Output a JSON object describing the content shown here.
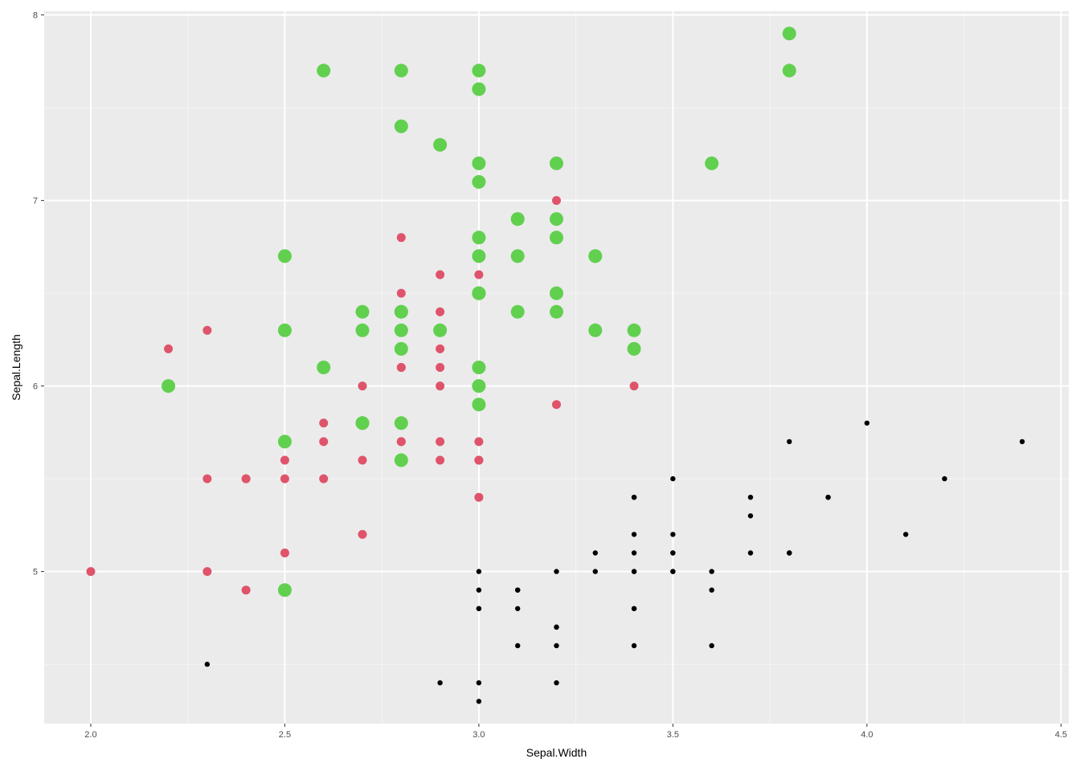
{
  "chart_data": {
    "type": "scatter",
    "title": "",
    "xlabel": "Sepal.Width",
    "ylabel": "Sepal.Length",
    "xlim": [
      1.88,
      4.52
    ],
    "ylim": [
      4.18,
      8.02
    ],
    "x_ticks": [
      "2.0",
      "2.5",
      "3.0",
      "3.5",
      "4.0",
      "4.5"
    ],
    "y_ticks": [
      "5",
      "6",
      "7",
      "8"
    ],
    "grid": true,
    "legend": "none",
    "series": [
      {
        "color": "#000000",
        "size": "small",
        "points": [
          [
            3.5,
            5.1
          ],
          [
            3.0,
            4.9
          ],
          [
            3.2,
            4.7
          ],
          [
            3.1,
            4.6
          ],
          [
            3.6,
            5.0
          ],
          [
            3.9,
            5.4
          ],
          [
            3.4,
            4.6
          ],
          [
            3.4,
            5.0
          ],
          [
            2.9,
            4.4
          ],
          [
            3.1,
            4.9
          ],
          [
            3.7,
            5.4
          ],
          [
            3.4,
            4.8
          ],
          [
            3.0,
            4.8
          ],
          [
            3.0,
            4.3
          ],
          [
            4.0,
            5.8
          ],
          [
            4.4,
            5.7
          ],
          [
            3.9,
            5.4
          ],
          [
            3.5,
            5.1
          ],
          [
            3.8,
            5.7
          ],
          [
            3.8,
            5.1
          ],
          [
            3.4,
            5.4
          ],
          [
            3.7,
            5.1
          ],
          [
            3.6,
            4.6
          ],
          [
            3.3,
            5.1
          ],
          [
            3.4,
            4.8
          ],
          [
            3.0,
            5.0
          ],
          [
            3.4,
            5.0
          ],
          [
            3.5,
            5.2
          ],
          [
            3.4,
            5.2
          ],
          [
            3.2,
            4.7
          ],
          [
            3.1,
            4.8
          ],
          [
            3.4,
            5.4
          ],
          [
            4.1,
            5.2
          ],
          [
            4.2,
            5.5
          ],
          [
            3.1,
            4.9
          ],
          [
            3.2,
            5.0
          ],
          [
            3.5,
            5.5
          ],
          [
            3.6,
            4.9
          ],
          [
            3.0,
            4.4
          ],
          [
            3.4,
            5.1
          ],
          [
            3.5,
            5.0
          ],
          [
            2.3,
            4.5
          ],
          [
            3.2,
            4.4
          ],
          [
            3.5,
            5.0
          ],
          [
            3.8,
            5.1
          ],
          [
            3.0,
            4.8
          ],
          [
            3.8,
            5.1
          ],
          [
            3.2,
            4.6
          ],
          [
            3.7,
            5.3
          ],
          [
            3.3,
            5.0
          ]
        ]
      },
      {
        "color": "#df536b",
        "size": "medium",
        "points": [
          [
            3.2,
            7.0
          ],
          [
            3.2,
            6.4
          ],
          [
            3.1,
            6.9
          ],
          [
            2.3,
            5.5
          ],
          [
            2.8,
            6.5
          ],
          [
            2.8,
            5.7
          ],
          [
            3.3,
            6.3
          ],
          [
            2.4,
            4.9
          ],
          [
            2.9,
            6.6
          ],
          [
            2.7,
            5.2
          ],
          [
            2.0,
            5.0
          ],
          [
            3.0,
            5.9
          ],
          [
            2.2,
            6.0
          ],
          [
            2.9,
            6.1
          ],
          [
            2.9,
            5.6
          ],
          [
            3.1,
            6.7
          ],
          [
            3.0,
            5.6
          ],
          [
            2.7,
            5.8
          ],
          [
            2.2,
            6.2
          ],
          [
            2.5,
            5.6
          ],
          [
            3.2,
            5.9
          ],
          [
            2.8,
            6.1
          ],
          [
            2.5,
            6.3
          ],
          [
            2.8,
            6.1
          ],
          [
            2.9,
            6.4
          ],
          [
            3.0,
            6.6
          ],
          [
            2.8,
            6.8
          ],
          [
            3.0,
            6.7
          ],
          [
            2.9,
            6.0
          ],
          [
            2.6,
            5.7
          ],
          [
            2.4,
            5.5
          ],
          [
            2.4,
            5.5
          ],
          [
            2.7,
            5.8
          ],
          [
            2.7,
            6.0
          ],
          [
            3.0,
            5.4
          ],
          [
            3.4,
            6.0
          ],
          [
            3.1,
            6.7
          ],
          [
            2.3,
            6.3
          ],
          [
            3.0,
            5.6
          ],
          [
            2.5,
            5.5
          ],
          [
            2.6,
            5.5
          ],
          [
            3.0,
            6.1
          ],
          [
            2.6,
            5.8
          ],
          [
            2.3,
            5.0
          ],
          [
            2.7,
            5.6
          ],
          [
            3.0,
            5.7
          ],
          [
            2.9,
            5.7
          ],
          [
            2.9,
            6.2
          ],
          [
            2.5,
            5.1
          ],
          [
            2.8,
            5.7
          ]
        ]
      },
      {
        "color": "#61d04f",
        "size": "large",
        "points": [
          [
            3.3,
            6.3
          ],
          [
            2.7,
            5.8
          ],
          [
            3.0,
            7.1
          ],
          [
            2.9,
            6.3
          ],
          [
            3.0,
            6.5
          ],
          [
            3.0,
            7.6
          ],
          [
            2.5,
            4.9
          ],
          [
            2.9,
            7.3
          ],
          [
            2.5,
            6.7
          ],
          [
            3.6,
            7.2
          ],
          [
            3.2,
            6.5
          ],
          [
            2.7,
            6.4
          ],
          [
            3.0,
            6.8
          ],
          [
            2.5,
            5.7
          ],
          [
            2.8,
            5.8
          ],
          [
            3.2,
            6.4
          ],
          [
            3.0,
            6.5
          ],
          [
            3.8,
            7.7
          ],
          [
            2.6,
            7.7
          ],
          [
            2.2,
            6.0
          ],
          [
            3.2,
            6.9
          ],
          [
            2.8,
            5.6
          ],
          [
            2.8,
            7.7
          ],
          [
            2.7,
            6.3
          ],
          [
            3.3,
            6.7
          ],
          [
            3.2,
            7.2
          ],
          [
            2.8,
            6.2
          ],
          [
            3.0,
            6.1
          ],
          [
            2.8,
            6.4
          ],
          [
            3.0,
            7.2
          ],
          [
            2.8,
            7.4
          ],
          [
            3.8,
            7.9
          ],
          [
            2.8,
            6.4
          ],
          [
            2.8,
            6.3
          ],
          [
            2.6,
            6.1
          ],
          [
            3.0,
            7.7
          ],
          [
            3.4,
            6.3
          ],
          [
            3.1,
            6.4
          ],
          [
            3.0,
            6.0
          ],
          [
            3.1,
            6.9
          ],
          [
            3.1,
            6.7
          ],
          [
            3.1,
            6.9
          ],
          [
            2.7,
            5.8
          ],
          [
            3.2,
            6.8
          ],
          [
            3.3,
            6.7
          ],
          [
            3.0,
            6.7
          ],
          [
            2.5,
            6.3
          ],
          [
            3.0,
            6.5
          ],
          [
            3.4,
            6.2
          ],
          [
            3.0,
            5.9
          ]
        ]
      }
    ]
  },
  "style": {
    "panel_background": "#ebebeb",
    "grid_major": "#ffffff",
    "grid_minor": "#f5f5f5",
    "axis_tick": "#333333"
  }
}
